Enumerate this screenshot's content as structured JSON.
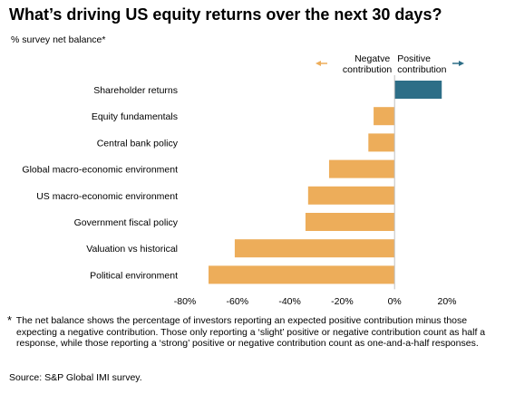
{
  "title": "What’s driving US equity returns over the next 30 days?",
  "subtitle": "% survey net balance*",
  "colors": {
    "negative": "#EDAD5A",
    "positive": "#2D6E87",
    "axis": "#BFBFBF",
    "negative_arrow": "#EDAD5A",
    "positive_arrow": "#2D6E87"
  },
  "direction_labels": {
    "negative_line1": "Negatve",
    "negative_line2": "contribution",
    "positive_line1": "Positive",
    "positive_line2": "contribution"
  },
  "chart_data": {
    "type": "bar",
    "orientation": "horizontal",
    "categories": [
      "Shareholder returns",
      "Equity fundamentals",
      "Central bank policy",
      "Global macro-economic environment",
      "US macro-economic environment",
      "Government fiscal policy",
      "Valuation vs historical",
      "Political environment"
    ],
    "values": [
      18,
      -8,
      -10,
      -25,
      -33,
      -34,
      -61,
      -71
    ],
    "xlim": [
      -80,
      20
    ],
    "x_ticks": [
      -80,
      -60,
      -40,
      -20,
      0,
      20
    ],
    "x_tick_labels": [
      "-80%",
      "-60%",
      "-40%",
      "-20%",
      "0%",
      "20%"
    ],
    "grid": false,
    "legend": "none"
  },
  "footnote": {
    "marker": "*",
    "text": "The net balance shows the percentage of investors reporting an expected positive contribution minus those expecting a negative contribution. Those only reporting a ‘slight’ positive or negative contribution count as half a response, while those reporting a ‘strong’ positive or negative contribution count as one-and-a-half responses."
  },
  "source": "Source: S&P Global IMI survey."
}
